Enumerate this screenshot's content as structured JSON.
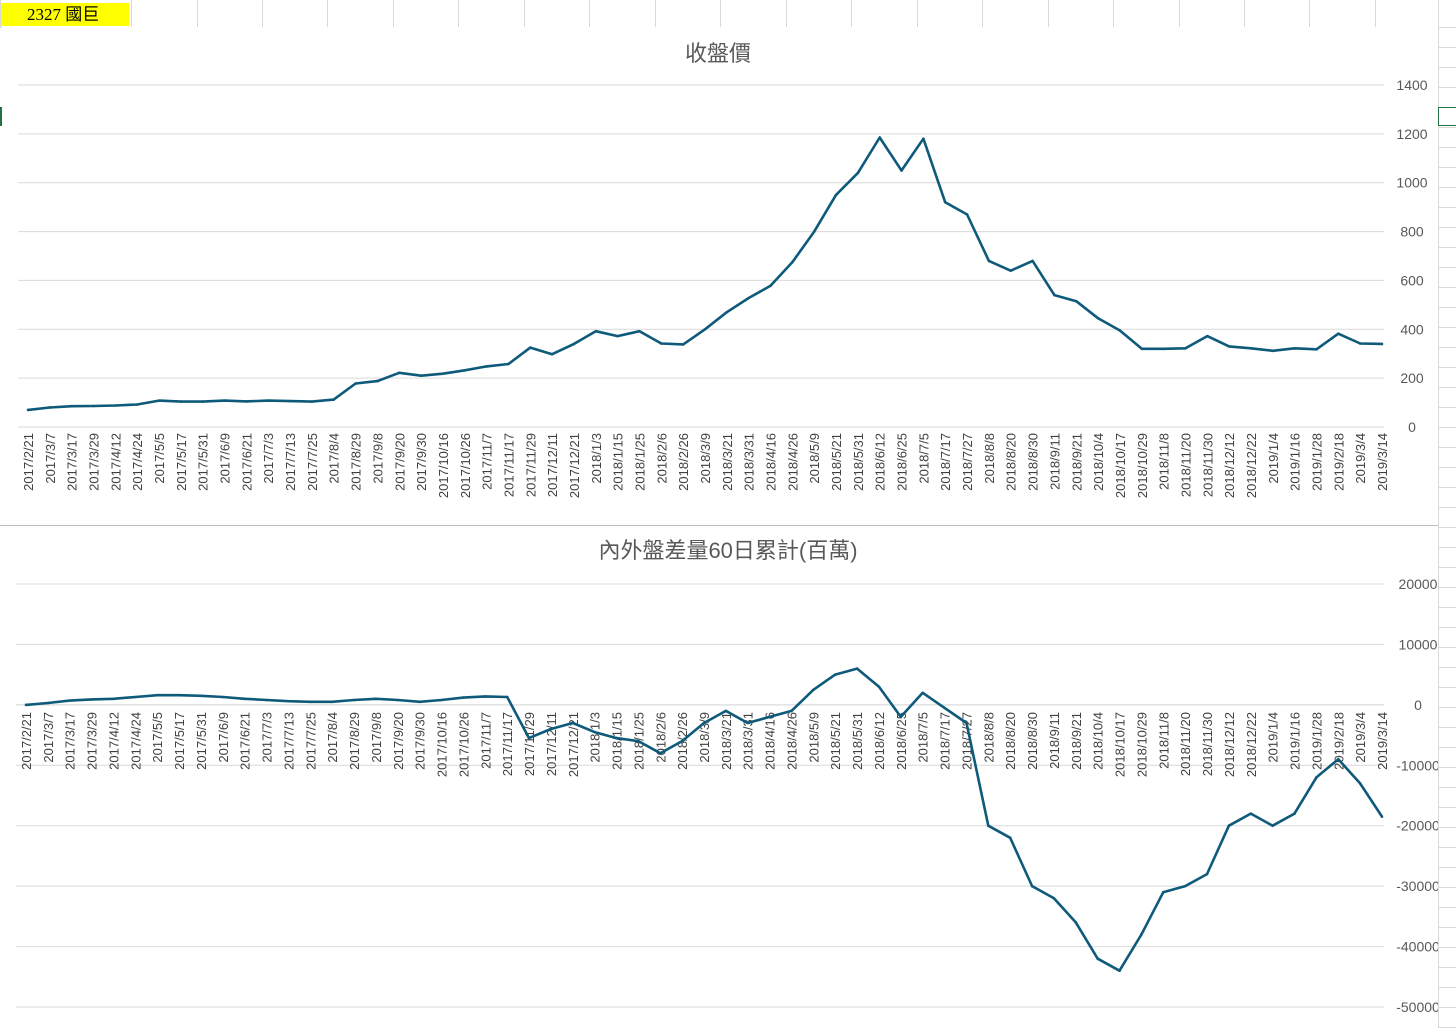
{
  "sheet": {
    "cell_label": "2327 國巨",
    "accent_color": "#ffff00",
    "gridline_color": "#d9d9d9",
    "series_color": "#0e5a7a"
  },
  "chart_data": [
    {
      "type": "line",
      "title": "收盤價",
      "xlabel": "",
      "ylabel": "",
      "ylim": [
        0,
        1400
      ],
      "yticks": [
        0,
        200,
        400,
        600,
        800,
        1000,
        1200,
        1400
      ],
      "grid": true,
      "legend": "none",
      "axis_side": "right",
      "x_labels": [
        "2017/2/21",
        "2017/3/7",
        "2017/3/17",
        "2017/3/29",
        "2017/4/12",
        "2017/4/24",
        "2017/5/5",
        "2017/5/17",
        "2017/5/31",
        "2017/6/9",
        "2017/6/21",
        "2017/7/3",
        "2017/7/13",
        "2017/7/25",
        "2017/8/4",
        "2017/8/29",
        "2017/9/8",
        "2017/9/20",
        "2017/9/30",
        "2017/10/16",
        "2017/10/26",
        "2017/11/7",
        "2017/11/17",
        "2017/11/29",
        "2017/12/11",
        "2017/12/21",
        "2018/1/3",
        "2018/1/15",
        "2018/1/25",
        "2018/2/6",
        "2018/2/26",
        "2018/3/9",
        "2018/3/21",
        "2018/3/31",
        "2018/4/16",
        "2018/4/26",
        "2018/5/9",
        "2018/5/21",
        "2018/5/31",
        "2018/6/12",
        "2018/6/25",
        "2018/7/5",
        "2018/7/17",
        "2018/7/27",
        "2018/8/8",
        "2018/8/20",
        "2018/8/30",
        "2018/9/11",
        "2018/9/21",
        "2018/10/4",
        "2018/10/17",
        "2018/10/29",
        "2018/11/8",
        "2018/11/20",
        "2018/11/30",
        "2018/12/12",
        "2018/12/22",
        "2019/1/4",
        "2019/1/16",
        "2019/1/28",
        "2019/2/18",
        "2019/3/4",
        "2019/3/14"
      ],
      "series": [
        {
          "values": [
            70,
            80,
            85,
            86,
            88,
            92,
            108,
            104,
            104,
            108,
            105,
            108,
            106,
            104,
            112,
            178,
            188,
            222,
            210,
            218,
            232,
            248,
            258,
            325,
            298,
            340,
            392,
            372,
            392,
            342,
            338,
            400,
            470,
            528,
            578,
            675,
            800,
            950,
            1040,
            1185,
            1050,
            1180,
            920,
            870,
            680,
            640,
            680,
            540,
            515,
            445,
            395,
            320,
            320,
            322,
            372,
            330,
            322,
            312,
            322,
            318,
            382,
            342,
            340
          ]
        }
      ]
    },
    {
      "type": "line",
      "title": "內外盤差量60日累計(百萬)",
      "xlabel": "",
      "ylabel": "",
      "ylim": [
        -50000,
        20000
      ],
      "yticks": [
        -50000,
        -40000,
        -30000,
        -20000,
        -10000,
        0,
        10000,
        20000
      ],
      "grid": true,
      "legend": "none",
      "axis_side": "right",
      "x_labels": [
        "2017/2/21",
        "2017/3/7",
        "2017/3/17",
        "2017/3/29",
        "2017/4/12",
        "2017/4/24",
        "2017/5/5",
        "2017/5/17",
        "2017/5/31",
        "2017/6/9",
        "2017/6/21",
        "2017/7/3",
        "2017/7/13",
        "2017/7/25",
        "2017/8/4",
        "2017/8/29",
        "2017/9/8",
        "2017/9/20",
        "2017/9/30",
        "2017/10/16",
        "2017/10/26",
        "2017/11/7",
        "2017/11/17",
        "2017/11/29",
        "2017/12/11",
        "2017/12/21",
        "2018/1/3",
        "2018/1/15",
        "2018/1/25",
        "2018/2/6",
        "2018/2/26",
        "2018/3/9",
        "2018/3/21",
        "2018/3/31",
        "2018/4/16",
        "2018/4/26",
        "2018/5/9",
        "2018/5/21",
        "2018/5/31",
        "2018/6/12",
        "2018/6/25",
        "2018/7/5",
        "2018/7/17",
        "2018/7/27",
        "2018/8/8",
        "2018/8/20",
        "2018/8/30",
        "2018/9/11",
        "2018/9/21",
        "2018/10/4",
        "2018/10/17",
        "2018/10/29",
        "2018/11/8",
        "2018/11/20",
        "2018/11/30",
        "2018/12/12",
        "2018/12/22",
        "2019/1/4",
        "2019/1/16",
        "2019/1/28",
        "2019/2/18",
        "2019/3/4",
        "2019/3/14"
      ],
      "series": [
        {
          "values": [
            0,
            300,
            700,
            900,
            1000,
            1300,
            1600,
            1600,
            1500,
            1300,
            1000,
            800,
            600,
            500,
            500,
            800,
            1000,
            800,
            500,
            800,
            1200,
            1400,
            1300,
            -5500,
            -4000,
            -3000,
            -4500,
            -5500,
            -6000,
            -8000,
            -6000,
            -3000,
            -1000,
            -3000,
            -2000,
            -1000,
            2500,
            5000,
            6000,
            3000,
            -2000,
            2000,
            -500,
            -3000,
            -20000,
            -22000,
            -30000,
            -32000,
            -36000,
            -42000,
            -44000,
            -38000,
            -31000,
            -30000,
            -28000,
            -20000,
            -18000,
            -20000,
            -18000,
            -12000,
            -9000,
            -13000,
            -18500
          ]
        }
      ]
    }
  ]
}
